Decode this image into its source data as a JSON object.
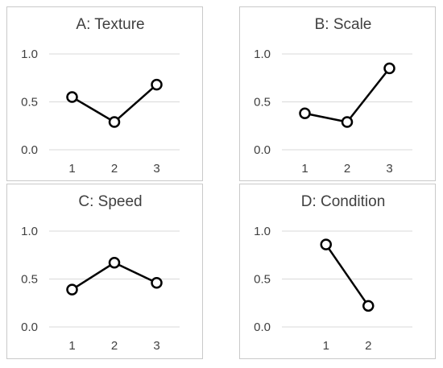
{
  "charts": [
    {
      "chart_data": {
        "type": "line",
        "title": "A: Texture",
        "categories": [
          "1",
          "2",
          "3"
        ],
        "values": [
          0.55,
          0.29,
          0.68
        ],
        "yticks": [
          "0.0",
          "0.5",
          "1.0"
        ],
        "ylim": [
          0,
          1
        ],
        "grid": true
      }
    },
    {
      "chart_data": {
        "type": "line",
        "title": "B: Scale",
        "categories": [
          "1",
          "2",
          "3"
        ],
        "values": [
          0.38,
          0.29,
          0.85
        ],
        "yticks": [
          "0.0",
          "0.5",
          "1.0"
        ],
        "ylim": [
          0,
          1
        ],
        "grid": true
      }
    },
    {
      "chart_data": {
        "type": "line",
        "title": "C: Speed",
        "categories": [
          "1",
          "2",
          "3"
        ],
        "values": [
          0.39,
          0.67,
          0.46
        ],
        "yticks": [
          "0.0",
          "0.5",
          "1.0"
        ],
        "ylim": [
          0,
          1
        ],
        "grid": true
      }
    },
    {
      "chart_data": {
        "type": "line",
        "title": "D: Condition",
        "categories": [
          "1",
          "2"
        ],
        "values": [
          0.86,
          0.22
        ],
        "yticks": [
          "0.0",
          "0.5",
          "1.0"
        ],
        "ylim": [
          0,
          1
        ],
        "grid": true
      }
    }
  ],
  "colors": {
    "line": "#000000",
    "marker_fill": "#ffffff",
    "grid": "#d9d9d9",
    "panel_border": "#c9c9c9",
    "text": "#404040"
  }
}
